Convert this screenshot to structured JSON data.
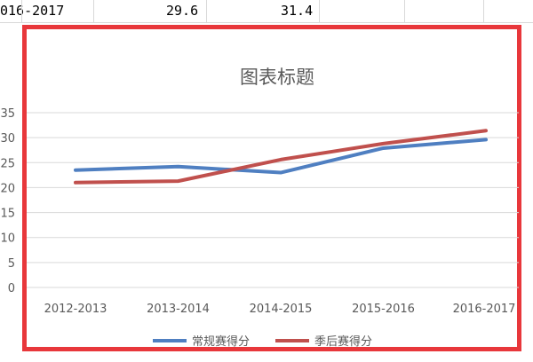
{
  "sheet_row": {
    "period": "016-2017",
    "value_a": "29.6",
    "value_b": "31.4"
  },
  "colors": {
    "accent_frame": "#e8373b",
    "series_regular": "#4f7fc1",
    "series_playoff": "#c0504d"
  },
  "chart_data": {
    "type": "line",
    "title": "图表标题",
    "categories": [
      "2012-2013",
      "2013-2014",
      "2014-2015",
      "2015-2016",
      "2016-2017"
    ],
    "series": [
      {
        "name": "常规赛得分",
        "values": [
          23.5,
          24.2,
          23.0,
          27.9,
          29.6
        ]
      },
      {
        "name": "季后赛得分",
        "values": [
          21.0,
          21.3,
          25.6,
          28.8,
          31.4
        ]
      }
    ],
    "ylim": [
      0,
      35
    ],
    "yticks": [
      0,
      5,
      10,
      15,
      20,
      25,
      30,
      35
    ],
    "grid": true,
    "legend": "bottom",
    "xlabel": "",
    "ylabel": ""
  }
}
